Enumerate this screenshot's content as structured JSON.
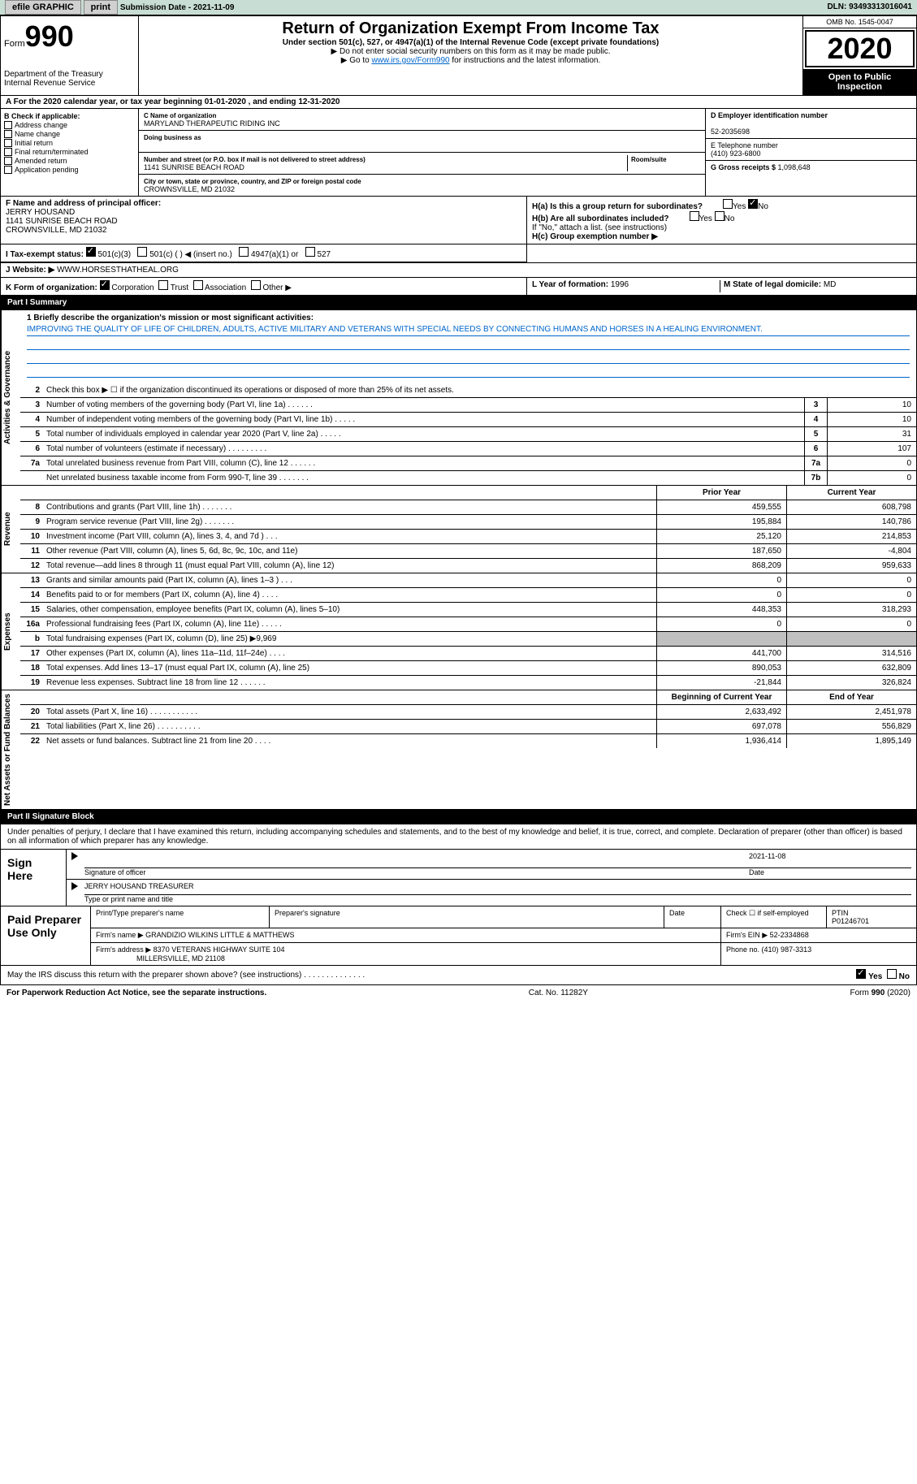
{
  "topbar": {
    "efile": "efile GRAPHIC",
    "print": "print",
    "subdate_label": "Submission Date - ",
    "subdate": "2021-11-09",
    "dln_label": "DLN: ",
    "dln": "93493313016041"
  },
  "header": {
    "form_word": "Form",
    "form_num": "990",
    "dept": "Department of the Treasury\nInternal Revenue Service",
    "title": "Return of Organization Exempt From Income Tax",
    "sub": "Under section 501(c), 527, or 4947(a)(1) of the Internal Revenue Code (except private foundations)",
    "note1": "▶ Do not enter social security numbers on this form as it may be made public.",
    "note2_pre": "▶ Go to ",
    "note2_link": "www.irs.gov/Form990",
    "note2_post": " for instructions and the latest information.",
    "omb": "OMB No. 1545-0047",
    "year": "2020",
    "inspect": "Open to Public Inspection"
  },
  "rowA": "A For the 2020 calendar year, or tax year beginning 01-01-2020    , and ending 12-31-2020",
  "colB": {
    "title": "B Check if applicable:",
    "items": [
      "Address change",
      "Name change",
      "Initial return",
      "Final return/terminated",
      "Amended return",
      "Application pending"
    ]
  },
  "colC": {
    "name_lbl": "C Name of organization",
    "name": "MARYLAND THERAPEUTIC RIDING INC",
    "dba_lbl": "Doing business as",
    "dba": "",
    "addr_lbl": "Number and street (or P.O. box if mail is not delivered to street address)",
    "addr": "1141 SUNRISE BEACH ROAD",
    "room_lbl": "Room/suite",
    "city_lbl": "City or town, state or province, country, and ZIP or foreign postal code",
    "city": "CROWNSVILLE, MD  21032"
  },
  "colD": {
    "ein_lbl": "D Employer identification number",
    "ein": "52-2035698",
    "tel_lbl": "E Telephone number",
    "tel": "(410) 923-6800",
    "gross_lbl": "G Gross receipts $ ",
    "gross": "1,098,648"
  },
  "rowF": {
    "lbl": "F Name and address of principal officer:",
    "name": "JERRY HOUSAND",
    "addr1": "1141 SUNRISE BEACH ROAD",
    "addr2": "CROWNSVILLE, MD  21032"
  },
  "rowH": {
    "ha": "H(a)  Is this a group return for subordinates?",
    "hb": "H(b)  Are all subordinates included?",
    "hb_note": "If \"No,\" attach a list. (see instructions)",
    "hc": "H(c)  Group exemption number ▶",
    "yes": "Yes",
    "no": "No"
  },
  "rowI": {
    "lbl": "I    Tax-exempt status:",
    "opts": [
      "501(c)(3)",
      "501(c) (   ) ◀ (insert no.)",
      "4947(a)(1) or",
      "527"
    ]
  },
  "rowJ": {
    "lbl": "J   Website: ▶",
    "val": "WWW.HORSESTHATHEAL.ORG"
  },
  "rowK": {
    "lbl": "K Form of organization:",
    "opts": [
      "Corporation",
      "Trust",
      "Association",
      "Other ▶"
    ]
  },
  "rowLM": {
    "l_lbl": "L Year of formation: ",
    "l_val": "1996",
    "m_lbl": "M State of legal domicile: ",
    "m_val": "MD"
  },
  "partI": {
    "title": "Part I    Summary",
    "vtab_gov": "Activities & Governance",
    "vtab_rev": "Revenue",
    "vtab_exp": "Expenses",
    "vtab_net": "Net Assets or Fund Balances",
    "line1_lbl": "1  Briefly describe the organization's mission or most significant activities:",
    "line1_txt": "IMPROVING THE QUALITY OF LIFE OF CHILDREN, ADULTS, ACTIVE MILITARY AND VETERANS WITH SPECIAL NEEDS BY CONNECTING HUMANS AND HORSES IN A HEALING ENVIRONMENT.",
    "line2": "Check this box ▶ ☐ if the organization discontinued its operations or disposed of more than 25% of its net assets.",
    "rows_simple": [
      {
        "n": "3",
        "d": "Number of voting members of the governing body (Part VI, line 1a)   .    .    .    .    .    .",
        "b": "3",
        "v": "10"
      },
      {
        "n": "4",
        "d": "Number of independent voting members of the governing body (Part VI, line 1b)   .    .    .    .    .",
        "b": "4",
        "v": "10"
      },
      {
        "n": "5",
        "d": "Total number of individuals employed in calendar year 2020 (Part V, line 2a)   .    .    .    .    .",
        "b": "5",
        "v": "31"
      },
      {
        "n": "6",
        "d": "Total number of volunteers (estimate if necessary)   .    .    .    .    .    .    .    .    .",
        "b": "6",
        "v": "107"
      },
      {
        "n": "7a",
        "d": "Total unrelated business revenue from Part VIII, column (C), line 12   .    .    .    .    .    .",
        "b": "7a",
        "v": "0"
      },
      {
        "n": "",
        "d": "Net unrelated business taxable income from Form 990-T, line 39   .    .    .    .    .    .    .",
        "b": "7b",
        "v": "0"
      }
    ],
    "col_prior": "Prior Year",
    "col_curr": "Current Year",
    "rows_dual": [
      {
        "n": "8",
        "d": "Contributions and grants (Part VIII, line 1h)   .    .    .    .    .    .    .",
        "p": "459,555",
        "c": "608,798"
      },
      {
        "n": "9",
        "d": "Program service revenue (Part VIII, line 2g)   .    .    .    .    .    .    .",
        "p": "195,884",
        "c": "140,786"
      },
      {
        "n": "10",
        "d": "Investment income (Part VIII, column (A), lines 3, 4, and 7d )   .    .    .",
        "p": "25,120",
        "c": "214,853"
      },
      {
        "n": "11",
        "d": "Other revenue (Part VIII, column (A), lines 5, 6d, 8c, 9c, 10c, and 11e)",
        "p": "187,650",
        "c": "-4,804"
      },
      {
        "n": "12",
        "d": "Total revenue—add lines 8 through 11 (must equal Part VIII, column (A), line 12)",
        "p": "868,209",
        "c": "959,633"
      }
    ],
    "rows_exp": [
      {
        "n": "13",
        "d": "Grants and similar amounts paid (Part IX, column (A), lines 1–3 )   .    .    .",
        "p": "0",
        "c": "0"
      },
      {
        "n": "14",
        "d": "Benefits paid to or for members (Part IX, column (A), line 4)   .    .    .    .",
        "p": "0",
        "c": "0"
      },
      {
        "n": "15",
        "d": "Salaries, other compensation, employee benefits (Part IX, column (A), lines 5–10)",
        "p": "448,353",
        "c": "318,293"
      },
      {
        "n": "16a",
        "d": "Professional fundraising fees (Part IX, column (A), line 11e)   .    .    .    .    .",
        "p": "0",
        "c": "0"
      },
      {
        "n": "b",
        "d": "Total fundraising expenses (Part IX, column (D), line 25) ▶9,969",
        "p": "",
        "c": "",
        "shaded": true
      },
      {
        "n": "17",
        "d": "Other expenses (Part IX, column (A), lines 11a–11d, 11f–24e)   .    .    .    .",
        "p": "441,700",
        "c": "314,516"
      },
      {
        "n": "18",
        "d": "Total expenses. Add lines 13–17 (must equal Part IX, column (A), line 25)",
        "p": "890,053",
        "c": "632,809"
      },
      {
        "n": "19",
        "d": "Revenue less expenses. Subtract line 18 from line 12   .    .    .    .    .    .",
        "p": "-21,844",
        "c": "326,824"
      }
    ],
    "col_beg": "Beginning of Current Year",
    "col_end": "End of Year",
    "rows_net": [
      {
        "n": "20",
        "d": "Total assets (Part X, line 16)   .    .    .    .    .    .    .    .    .    .    .",
        "p": "2,633,492",
        "c": "2,451,978"
      },
      {
        "n": "21",
        "d": "Total liabilities (Part X, line 26)   .    .    .    .    .    .    .    .    .    .",
        "p": "697,078",
        "c": "556,829"
      },
      {
        "n": "22",
        "d": "Net assets or fund balances. Subtract line 21 from line 20   .    .    .    .",
        "p": "1,936,414",
        "c": "1,895,149"
      }
    ]
  },
  "partII": {
    "title": "Part II    Signature Block",
    "decl": "Under penalties of perjury, I declare that I have examined this return, including accompanying schedules and statements, and to the best of my knowledge and belief, it is true, correct, and complete. Declaration of preparer (other than officer) is based on all information of which preparer has any knowledge.",
    "sign_here": "Sign Here",
    "sig_officer": "Signature of officer",
    "sig_date": "Date",
    "sig_date_val": "2021-11-08",
    "name_title": "Type or print name and title",
    "name_val": "JERRY HOUSAND  TREASURER",
    "paid_prep": "Paid Preparer Use Only",
    "prep_name_lbl": "Print/Type preparer's name",
    "prep_sig_lbl": "Preparer's signature",
    "prep_date_lbl": "Date",
    "self_emp": "Check ☐ if self-employed",
    "ptin_lbl": "PTIN",
    "ptin": "P01246701",
    "firm_name_lbl": "Firm's name    ▶",
    "firm_name": "GRANDIZIO WILKINS LITTLE & MATTHEWS",
    "firm_ein_lbl": "Firm's EIN ▶",
    "firm_ein": "52-2334868",
    "firm_addr_lbl": "Firm's address ▶",
    "firm_addr1": "8370 VETERANS HIGHWAY SUITE 104",
    "firm_addr2": "MILLERSVILLE, MD  21108",
    "phone_lbl": "Phone no. ",
    "phone": "(410) 987-3313",
    "discuss": "May the IRS discuss this return with the preparer shown above? (see instructions)   .    .    .    .    .    .    .    .    .    .    .    .    .    .",
    "yes": "Yes",
    "no": "No"
  },
  "footer": {
    "pra": "For Paperwork Reduction Act Notice, see the separate instructions.",
    "cat": "Cat. No. 11282Y",
    "form": "Form 990 (2020)"
  }
}
